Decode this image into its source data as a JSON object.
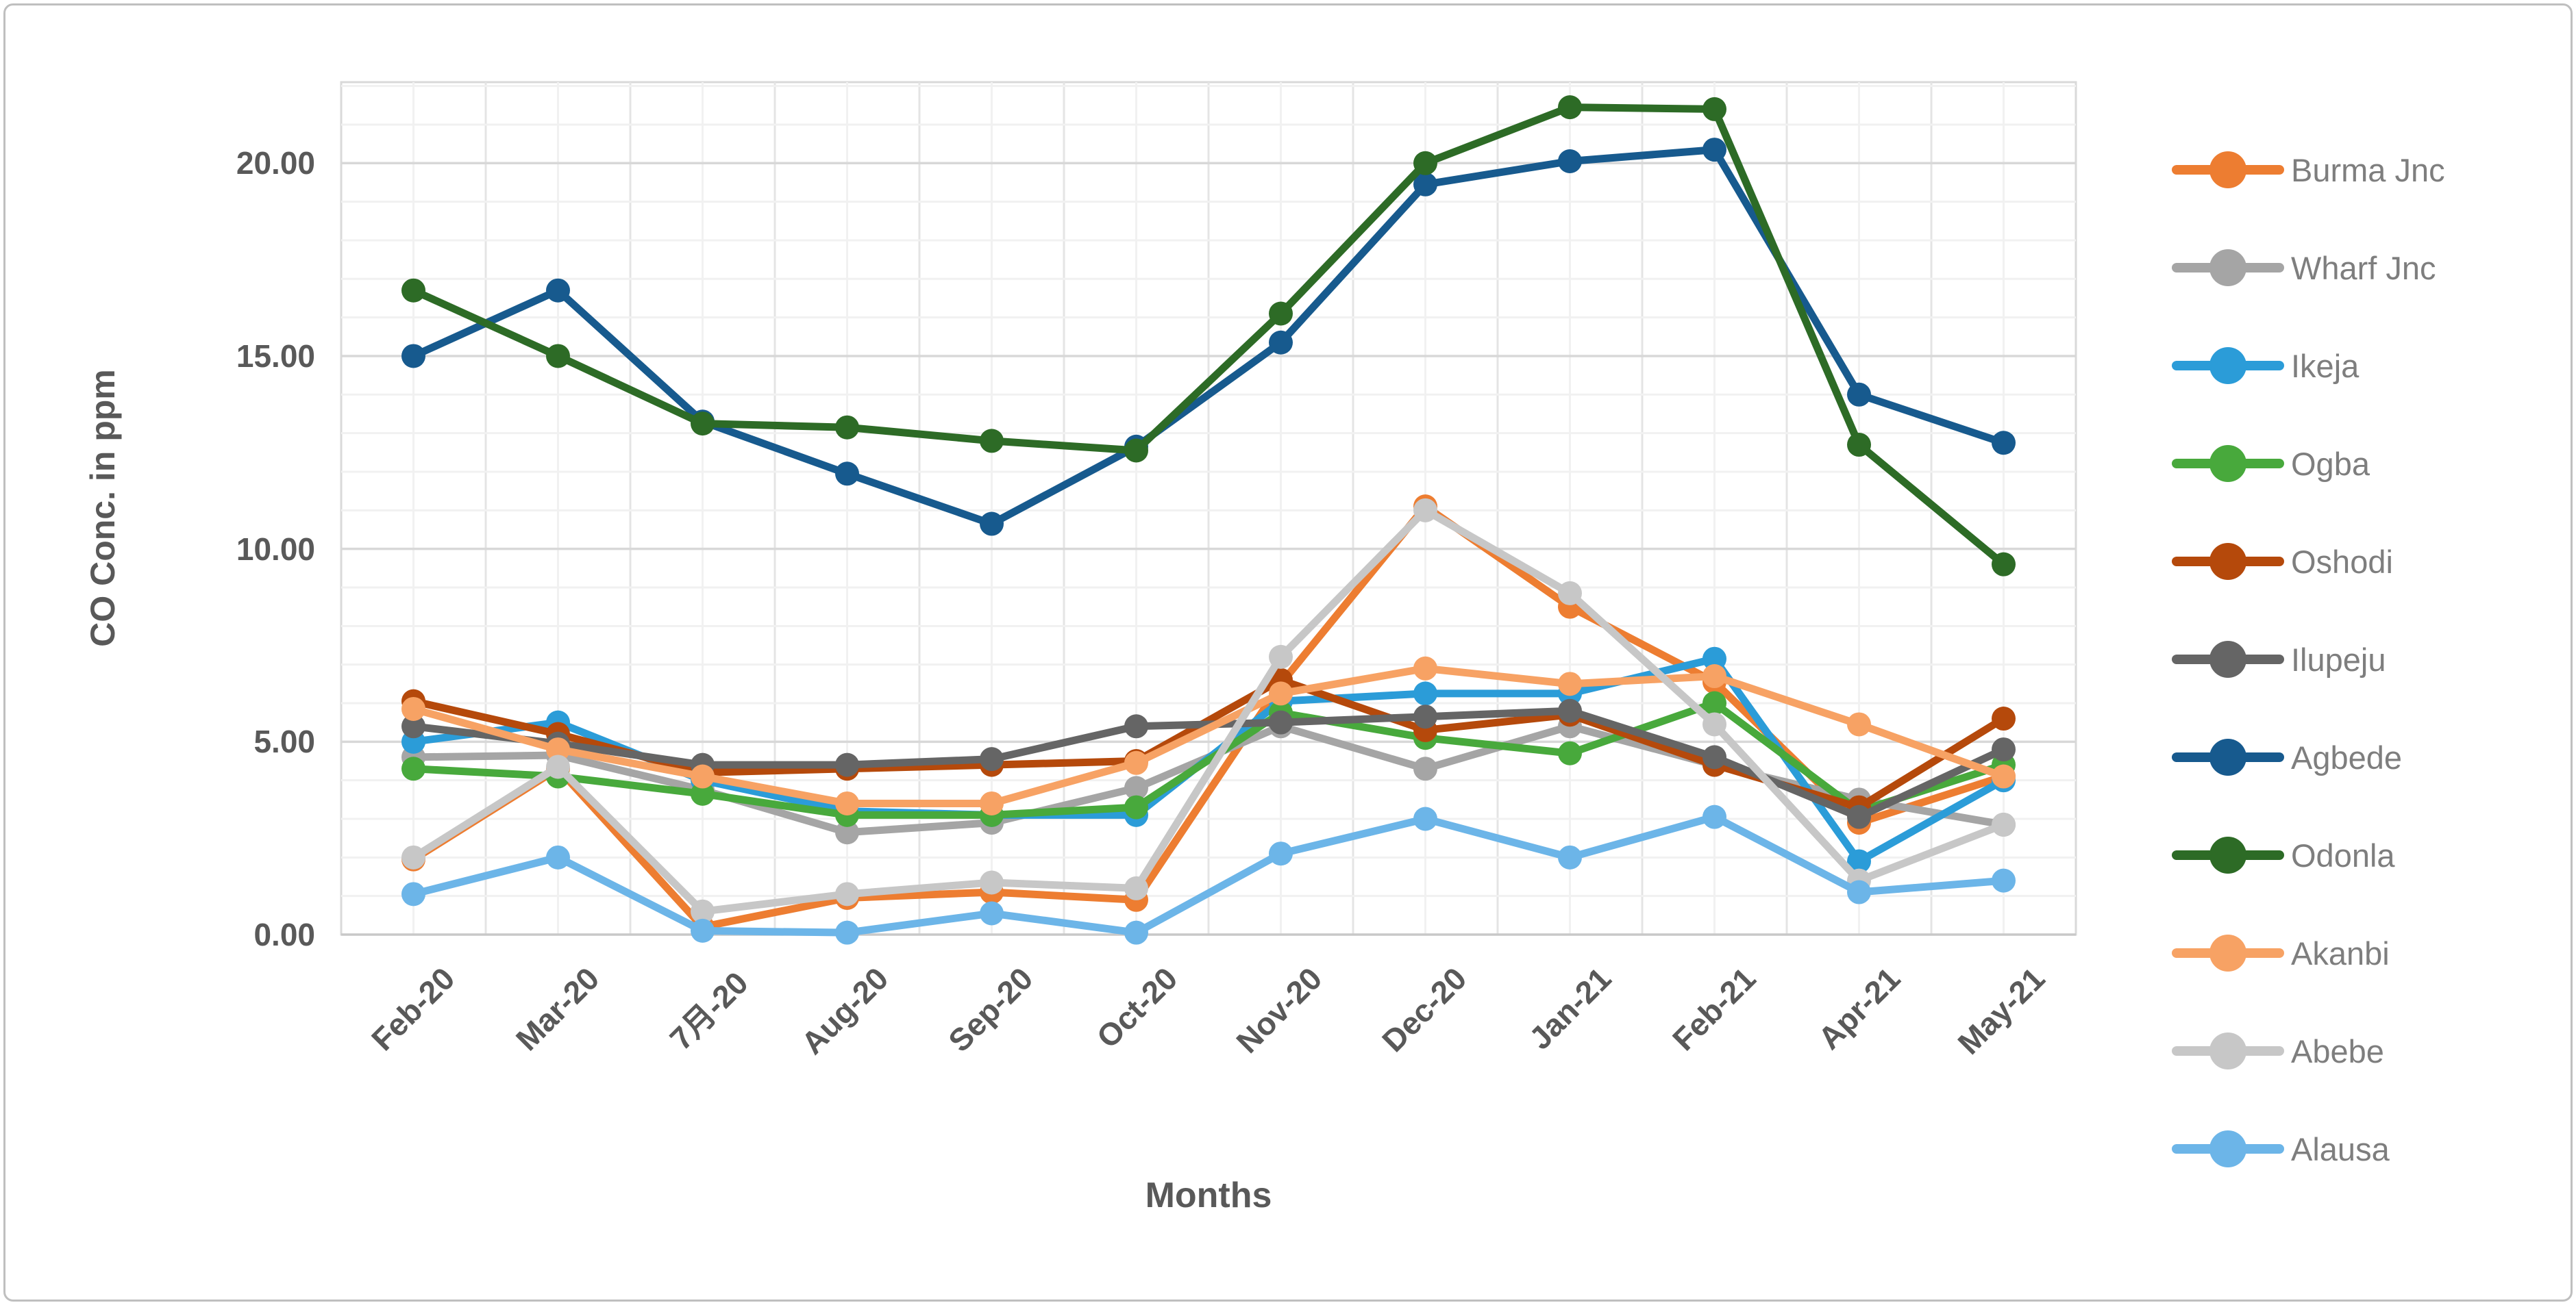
{
  "chart_data": {
    "type": "line",
    "title": "",
    "xlabel": "Months",
    "ylabel": "CO Conc. in ppm",
    "ylim": [
      0,
      22.1
    ],
    "y_tick_values": [
      0,
      5,
      10,
      15,
      20
    ],
    "y_tick_labels": [
      "0.00",
      "5.00",
      "10.00",
      "15.00",
      "20.00"
    ],
    "grid": "major and minor gridlines on, white background",
    "legend_position": "right",
    "marker": "circle",
    "categories": [
      "Feb-20",
      "Mar-20",
      "7月-20",
      "Aug-20",
      "Sep-20",
      "Oct-20",
      "Nov-20",
      "Dec-20",
      "Jan-21",
      "Feb-21",
      "Apr-21",
      "May-21"
    ],
    "series": [
      {
        "name": "Burma Jnc",
        "color": "#ED7D31",
        "values": [
          1.95,
          4.3,
          0.2,
          0.95,
          1.1,
          0.9,
          6.5,
          11.1,
          8.5,
          6.55,
          2.9,
          4.1
        ]
      },
      {
        "name": "Wharf Jnc",
        "color": "#A5A5A5",
        "values": [
          4.6,
          4.65,
          3.75,
          2.65,
          2.9,
          3.8,
          5.4,
          4.3,
          5.4,
          4.4,
          3.5,
          2.85
        ]
      },
      {
        "name": "Ikeja",
        "color": "#2B9CD8",
        "values": [
          5.0,
          5.5,
          4.0,
          3.2,
          3.1,
          3.1,
          6.05,
          6.25,
          6.25,
          7.15,
          1.9,
          4.0
        ]
      },
      {
        "name": "Ogba",
        "color": "#48A93C",
        "values": [
          4.3,
          4.1,
          3.65,
          3.1,
          3.1,
          3.3,
          5.75,
          5.1,
          4.7,
          6.0,
          3.2,
          4.4
        ]
      },
      {
        "name": "Oshodi",
        "color": "#B5490B",
        "values": [
          6.05,
          5.2,
          4.2,
          4.3,
          4.4,
          4.5,
          6.6,
          5.3,
          5.7,
          4.4,
          3.3,
          5.6
        ]
      },
      {
        "name": "Ilupeju",
        "color": "#656565",
        "values": [
          5.4,
          4.95,
          4.4,
          4.4,
          4.55,
          5.4,
          5.5,
          5.65,
          5.8,
          4.6,
          3.05,
          4.8
        ]
      },
      {
        "name": "Agbede",
        "color": "#175A8E",
        "values": [
          15.0,
          16.7,
          13.3,
          11.95,
          10.65,
          12.65,
          15.35,
          19.45,
          20.05,
          20.35,
          14.0,
          12.75
        ]
      },
      {
        "name": "Odonla",
        "color": "#2D6B26",
        "values": [
          16.7,
          15.0,
          13.25,
          13.15,
          12.8,
          12.55,
          16.1,
          20.0,
          21.45,
          21.4,
          12.7,
          9.6
        ]
      },
      {
        "name": "Akanbi",
        "color": "#F7A264",
        "values": [
          5.85,
          4.8,
          4.1,
          3.4,
          3.4,
          4.45,
          6.25,
          6.9,
          6.5,
          6.7,
          5.45,
          4.1
        ]
      },
      {
        "name": "Abebe",
        "color": "#C7C7C7",
        "values": [
          2.0,
          4.35,
          0.6,
          1.05,
          1.35,
          1.2,
          7.2,
          11.0,
          8.85,
          5.45,
          1.4,
          2.85
        ]
      },
      {
        "name": "Alausa",
        "color": "#6CB5E8",
        "values": [
          1.05,
          2.0,
          0.1,
          0.05,
          0.55,
          0.05,
          2.1,
          3.0,
          2.0,
          3.05,
          1.1,
          1.4
        ]
      }
    ]
  }
}
